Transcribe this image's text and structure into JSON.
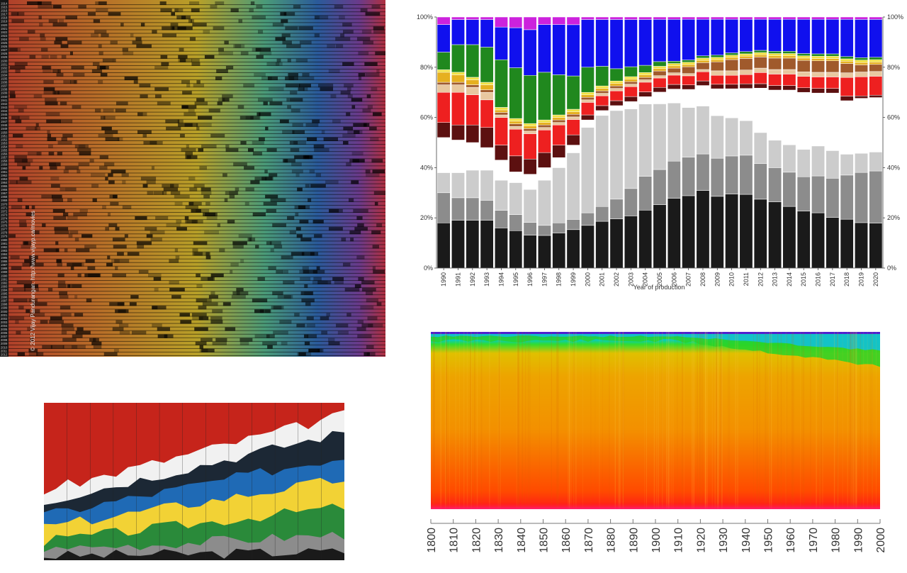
{
  "chart_data": [
    {
      "type": "heatmap",
      "credit": "© 2012  Vijay Pandurangan.  http://www.vijayp.ca/movies",
      "y_start": 1914,
      "y_end": 2012
    },
    {
      "type": "bar",
      "xlabel": "Year of production",
      "categories": [
        "1990",
        "1991",
        "1992",
        "1993",
        "1994",
        "1995",
        "1996",
        "1997",
        "1998",
        "1999",
        "2000",
        "2001",
        "2002",
        "2003",
        "2004",
        "2005",
        "2006",
        "2007",
        "2008",
        "2009",
        "2010",
        "2011",
        "2012",
        "2013",
        "2014",
        "2015",
        "2016",
        "2017",
        "2018",
        "2019",
        "2020"
      ],
      "yticks_left": [
        "0%",
        "20%",
        "40%",
        "60%",
        "80%",
        "100%"
      ],
      "yticks_right": [
        "0%",
        "20%",
        "40%",
        "60%",
        "80%",
        "100%"
      ],
      "colors": [
        "#1a1a1a",
        "#8c8c8c",
        "#cccccc",
        "#ffffff",
        "#5c1010",
        "#ee2020",
        "#e8c8a0",
        "#a05a2c",
        "#e6b020",
        "#f0e040",
        "#20881e",
        "#1010ee",
        "#cc22dd"
      ],
      "series": [
        {
          "values": [
            18,
            19,
            19,
            19,
            16,
            14,
            13,
            13,
            14,
            15,
            17,
            19,
            20,
            21,
            24,
            27,
            30,
            32,
            34,
            32,
            33,
            32,
            31,
            29,
            27,
            25,
            24,
            22,
            21,
            19,
            19
          ]
        },
        {
          "values": [
            12,
            9,
            9,
            8,
            7,
            6,
            5,
            4,
            4,
            4,
            5,
            6,
            8,
            11,
            14,
            15,
            16,
            17,
            16,
            17,
            17,
            17,
            16,
            15,
            15,
            15,
            16,
            17,
            19,
            21,
            22
          ]
        },
        {
          "values": [
            8,
            10,
            11,
            12,
            12,
            12,
            13,
            18,
            22,
            26,
            34,
            37,
            36,
            32,
            30,
            28,
            25,
            22,
            21,
            19,
            17,
            15,
            14,
            12,
            12,
            12,
            13,
            12,
            9,
            8,
            8
          ]
        },
        {
          "values": [
            14,
            13,
            11,
            9,
            8,
            4,
            6,
            5,
            4,
            3,
            3,
            2,
            2,
            3,
            3,
            5,
            6,
            8,
            9,
            12,
            13,
            14,
            20,
            22,
            24,
            25,
            23,
            25,
            23,
            23,
            23
          ]
        },
        {
          "values": [
            6,
            6,
            7,
            8,
            6,
            6,
            6,
            6,
            5,
            4,
            2,
            2,
            2,
            2,
            2,
            2,
            2,
            2,
            2,
            2,
            2,
            2,
            2,
            2,
            2,
            2,
            2,
            2,
            2,
            1,
            1
          ]
        },
        {
          "values": [
            12,
            13,
            12,
            11,
            11,
            10,
            10,
            9,
            8,
            6,
            5,
            4,
            4,
            4,
            4,
            4,
            4,
            4,
            4,
            4,
            4,
            4,
            5,
            5,
            5,
            5,
            5,
            5,
            8,
            8,
            8
          ]
        },
        {
          "values": [
            3,
            3,
            3,
            3,
            1,
            1,
            1,
            1,
            1,
            1,
            1,
            1,
            1,
            1,
            1,
            1,
            1,
            1,
            1,
            2,
            2,
            2,
            2,
            2,
            2,
            2,
            2,
            2,
            2,
            2,
            2
          ]
        },
        {
          "values": [
            1,
            1,
            1,
            1,
            1,
            1,
            1,
            1,
            1,
            1,
            1,
            1,
            1,
            1,
            1,
            2,
            2,
            3,
            3,
            4,
            5,
            5,
            5,
            5,
            5,
            5,
            5,
            5,
            4,
            3,
            3
          ]
        },
        {
          "values": [
            4,
            3,
            2,
            2,
            1,
            1,
            1,
            1,
            1,
            1,
            1,
            1,
            1,
            1,
            1,
            1,
            1,
            1,
            1,
            1,
            1,
            1,
            1,
            1,
            1,
            1,
            1,
            1,
            1,
            1,
            1
          ]
        },
        {
          "values": [
            1,
            1,
            1,
            1,
            1,
            1,
            1,
            1,
            1,
            1,
            1,
            1,
            1,
            1,
            1,
            1,
            1,
            1,
            1,
            1,
            1,
            1,
            1,
            1,
            1,
            1,
            1,
            1,
            1,
            1,
            1
          ]
        },
        {
          "values": [
            7,
            11,
            13,
            14,
            19,
            19,
            19,
            19,
            16,
            13,
            10,
            8,
            5,
            4,
            3,
            2,
            1,
            1,
            1,
            1,
            1,
            1,
            1,
            1,
            1,
            1,
            1,
            1,
            1,
            1,
            1
          ]
        },
        {
          "values": [
            11,
            10,
            10,
            11,
            13,
            15,
            18,
            19,
            20,
            20,
            19,
            19,
            20,
            19,
            19,
            18,
            18,
            18,
            16,
            16,
            15,
            14,
            14,
            14,
            14,
            15,
            15,
            15,
            16,
            16,
            16
          ]
        },
        {
          "values": [
            3,
            1,
            1,
            1,
            4,
            4,
            5,
            3,
            3,
            3,
            1,
            1,
            1,
            1,
            1,
            1,
            1,
            1,
            1,
            1,
            1,
            1,
            1,
            1,
            1,
            1,
            1,
            1,
            1,
            1,
            1
          ]
        }
      ]
    },
    {
      "type": "area",
      "layers": [
        {
          "color": "#1a1a1a"
        },
        {
          "color": "#8c8c8c"
        },
        {
          "color": "#2a8a3a"
        },
        {
          "color": "#f2d235"
        },
        {
          "color": "#1f6ab5"
        },
        {
          "color": "#1c2835"
        },
        {
          "color": "#f1f1f1"
        },
        {
          "color": "#c6241b"
        }
      ]
    },
    {
      "type": "heatmap",
      "xticks": [
        "1800",
        "1810",
        "1820",
        "1830",
        "1840",
        "1850",
        "1860",
        "1870",
        "1880",
        "1890",
        "1900",
        "1910",
        "1920",
        "1930",
        "1940",
        "1950",
        "1960",
        "1970",
        "1980",
        "1990",
        "2000"
      ],
      "colors": [
        "#ff1818",
        "#ff6a00",
        "#f0a000",
        "#e8c800",
        "#20e020",
        "#00d8c8",
        "#1080ff",
        "#5020d0"
      ]
    }
  ]
}
